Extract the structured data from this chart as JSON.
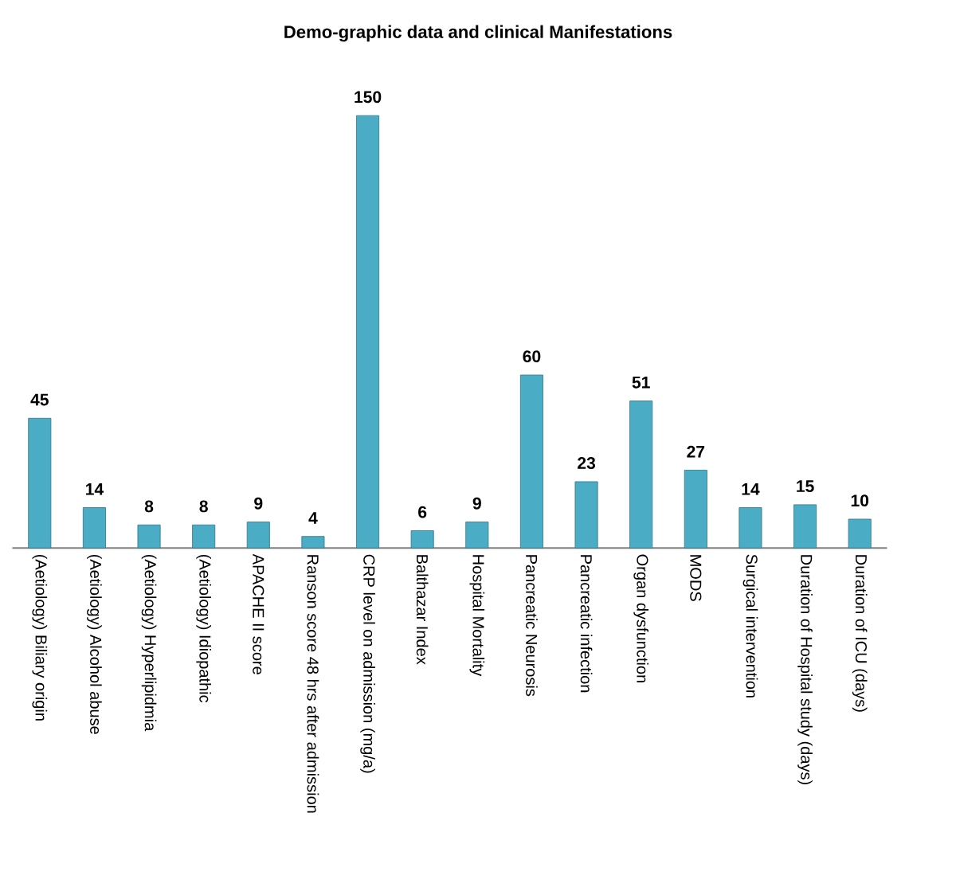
{
  "chart_data": {
    "type": "bar",
    "title": "Demo-graphic data and clinical Manifestations",
    "categories": [
      "(Aetiology) Biliary origin",
      "(Aetiology) Alcohol abuse",
      "(Aetiology) Hyperlipidmia",
      "(Aetiology) Idiopathic",
      "APACHE II score",
      "Ranson score 48 hrs after admission",
      "CRP level on admission (mg/a)",
      "Balthazar Index",
      "Hospital Mortality",
      "Pancreatic Neurosis",
      "Pancreatic infection",
      "Organ dysfunction",
      "MODS",
      "Surgical intervention",
      "Duration of Hospital study (days)",
      "Duration of ICU (days)"
    ],
    "values": [
      45,
      14,
      8,
      8,
      9,
      4,
      150,
      6,
      9,
      60,
      23,
      51,
      27,
      14,
      15,
      10
    ],
    "color": "#4bacc6",
    "data_labels": true
  }
}
